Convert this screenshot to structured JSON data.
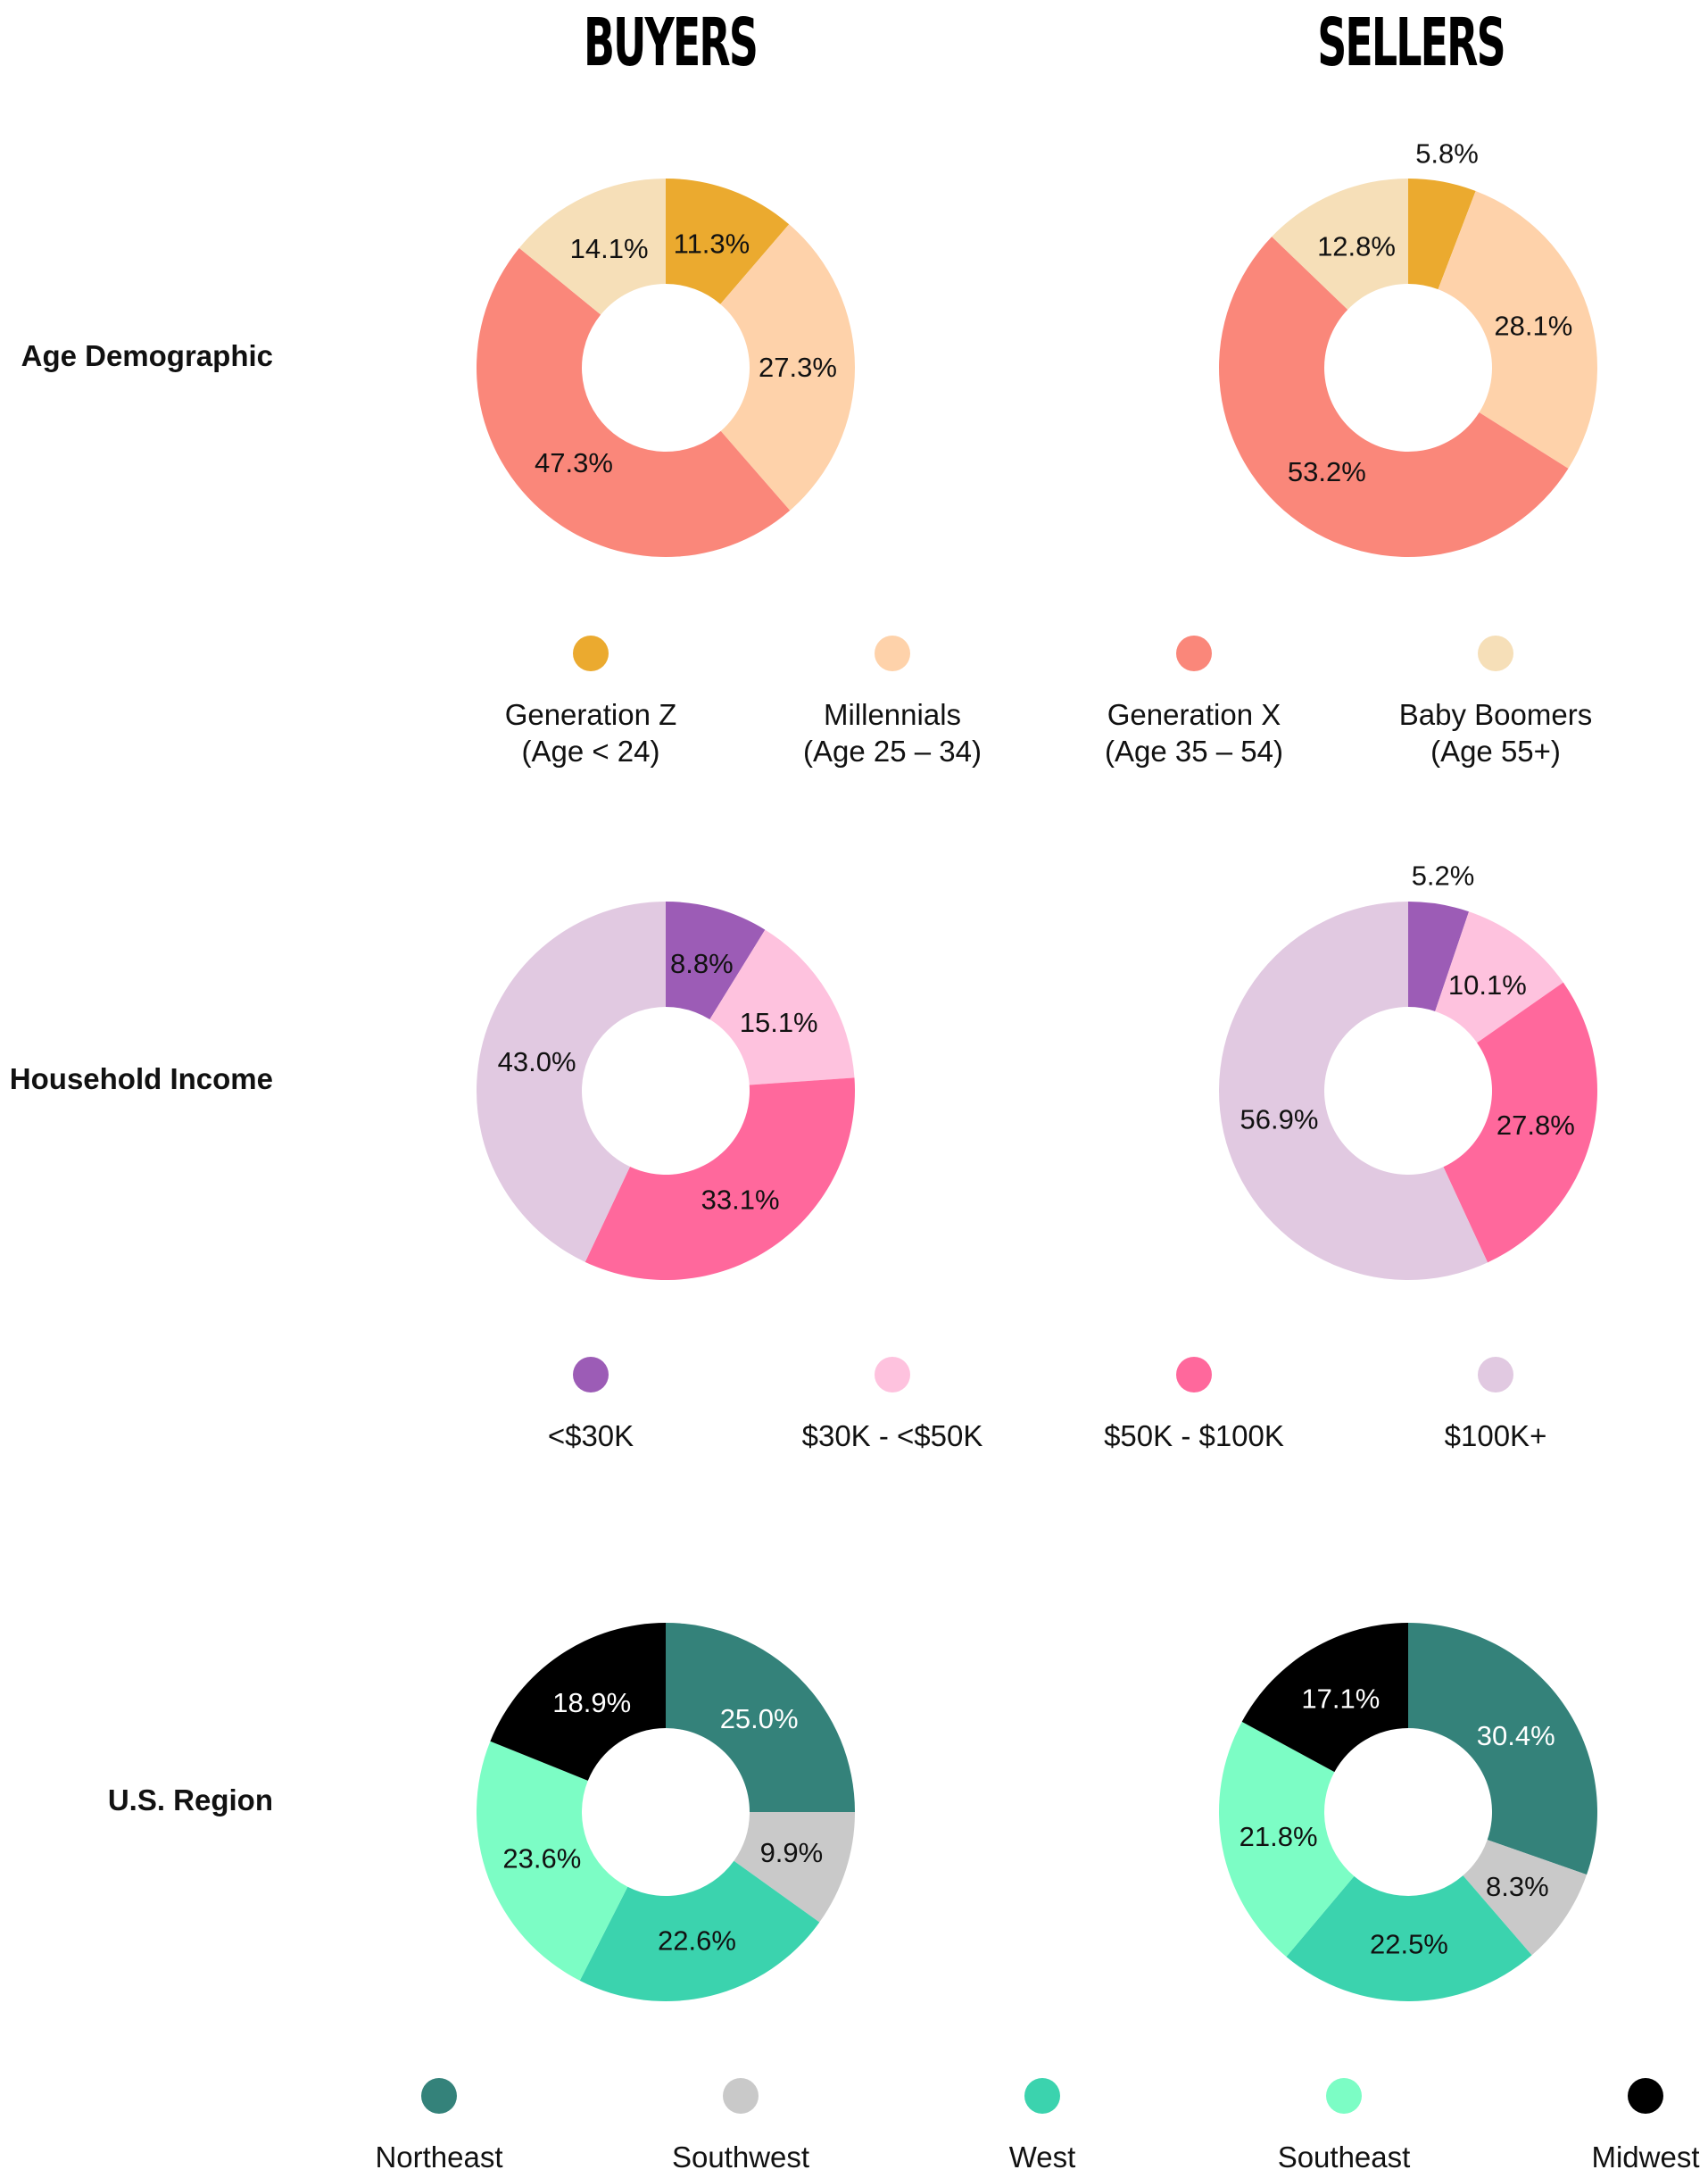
{
  "columns": {
    "buyers": "BUYERS",
    "sellers": "SELLERS"
  },
  "rows": {
    "age": "Age Demographic",
    "income": "Household Income",
    "region": "U.S. Region"
  },
  "legends": {
    "age": [
      {
        "line1": "Generation Z",
        "line2": "(Age < 24)",
        "color": "#EBAA2F"
      },
      {
        "line1": "Millennials",
        "line2": "(Age 25 – 34)",
        "color": "#FED2AA"
      },
      {
        "line1": "Generation X",
        "line2": "(Age 35 – 54)",
        "color": "#FA877A"
      },
      {
        "line1": "Baby Boomers",
        "line2": "(Age 55+)",
        "color": "#F6DFB8"
      }
    ],
    "income": [
      {
        "line1": "<$30K",
        "color": "#9C5CB6"
      },
      {
        "line1": "$30K - <$50K",
        "color": "#FEC2DE"
      },
      {
        "line1": "$50K - $100K",
        "color": "#FF689C"
      },
      {
        "line1": "$100K+",
        "color": "#E1C9E1"
      }
    ],
    "region": [
      {
        "line1": "Northeast",
        "color": "#34827A"
      },
      {
        "line1": "Southwest",
        "color": "#C9C9C9"
      },
      {
        "line1": "West",
        "color": "#3BD3AE"
      },
      {
        "line1": "Southeast",
        "color": "#7CFDC5"
      },
      {
        "line1": "Midwest",
        "color": "#000000"
      }
    ]
  },
  "chart_data": [
    {
      "type": "pie",
      "title": "Age Demographic",
      "panel": "BUYERS",
      "categories": [
        "Generation Z (Age < 24)",
        "Millennials (Age 25 – 34)",
        "Generation X (Age 35 – 54)",
        "Baby Boomers (Age 55+)"
      ],
      "values": [
        11.3,
        27.3,
        47.3,
        14.1
      ],
      "labels": [
        "11.3%",
        "27.3%",
        "47.3%",
        "14.1%"
      ],
      "colors": [
        "#EBAA2F",
        "#FED2AA",
        "#FA877A",
        "#F6DFB8"
      ],
      "label_colors": [
        "#111111",
        "#111111",
        "#111111",
        "#111111"
      ]
    },
    {
      "type": "pie",
      "title": "Age Demographic",
      "panel": "SELLERS",
      "categories": [
        "Generation Z (Age < 24)",
        "Millennials (Age 25 – 34)",
        "Generation X (Age 35 – 54)",
        "Baby Boomers (Age 55+)"
      ],
      "values": [
        5.8,
        28.1,
        53.2,
        12.8
      ],
      "labels": [
        "5.8%",
        "28.1%",
        "53.2%",
        "12.8%"
      ],
      "colors": [
        "#EBAA2F",
        "#FED2AA",
        "#FA877A",
        "#F6DFB8"
      ],
      "label_colors": [
        "#111111",
        "#111111",
        "#111111",
        "#111111"
      ],
      "outside_labels": [
        0
      ]
    },
    {
      "type": "pie",
      "title": "Household Income",
      "panel": "BUYERS",
      "categories": [
        "<$30K",
        "$30K - <$50K",
        "$50K - $100K",
        "$100K+"
      ],
      "values": [
        8.8,
        15.1,
        33.1,
        43.0
      ],
      "labels": [
        "8.8%",
        "15.1%",
        "33.1%",
        "43.0%"
      ],
      "colors": [
        "#9C5CB6",
        "#FEC2DE",
        "#FF689C",
        "#E1C9E1"
      ],
      "label_colors": [
        "#111111",
        "#111111",
        "#111111",
        "#111111"
      ]
    },
    {
      "type": "pie",
      "title": "Household Income",
      "panel": "SELLERS",
      "categories": [
        "<$30K",
        "$30K - <$50K",
        "$50K - $100K",
        "$100K+"
      ],
      "values": [
        5.2,
        10.1,
        27.8,
        56.9
      ],
      "labels": [
        "5.2%",
        "10.1%",
        "27.8%",
        "56.9%"
      ],
      "colors": [
        "#9C5CB6",
        "#FEC2DE",
        "#FF689C",
        "#E1C9E1"
      ],
      "label_colors": [
        "#111111",
        "#111111",
        "#111111",
        "#111111"
      ],
      "outside_labels": [
        0
      ]
    },
    {
      "type": "pie",
      "title": "U.S. Region",
      "panel": "BUYERS",
      "categories": [
        "Northeast",
        "Southwest",
        "West",
        "Southeast",
        "Midwest"
      ],
      "values": [
        25.0,
        9.9,
        22.6,
        23.6,
        18.9
      ],
      "labels": [
        "25.0%",
        "9.9%",
        "22.6%",
        "23.6%",
        "18.9%"
      ],
      "colors": [
        "#34827A",
        "#C9C9C9",
        "#3BD3AE",
        "#7CFDC5",
        "#000000"
      ],
      "label_colors": [
        "#ffffff",
        "#111111",
        "#111111",
        "#111111",
        "#ffffff"
      ]
    },
    {
      "type": "pie",
      "title": "U.S. Region",
      "panel": "SELLERS",
      "categories": [
        "Northeast",
        "Southwest",
        "West",
        "Southeast",
        "Midwest"
      ],
      "values": [
        30.4,
        8.3,
        22.5,
        21.8,
        17.1
      ],
      "labels": [
        "30.4%",
        "8.3%",
        "22.5%",
        "21.8%",
        "17.1%"
      ],
      "colors": [
        "#34827A",
        "#C9C9C9",
        "#3BD3AE",
        "#7CFDC5",
        "#000000"
      ],
      "label_colors": [
        "#ffffff",
        "#111111",
        "#111111",
        "#111111",
        "#ffffff"
      ]
    }
  ]
}
